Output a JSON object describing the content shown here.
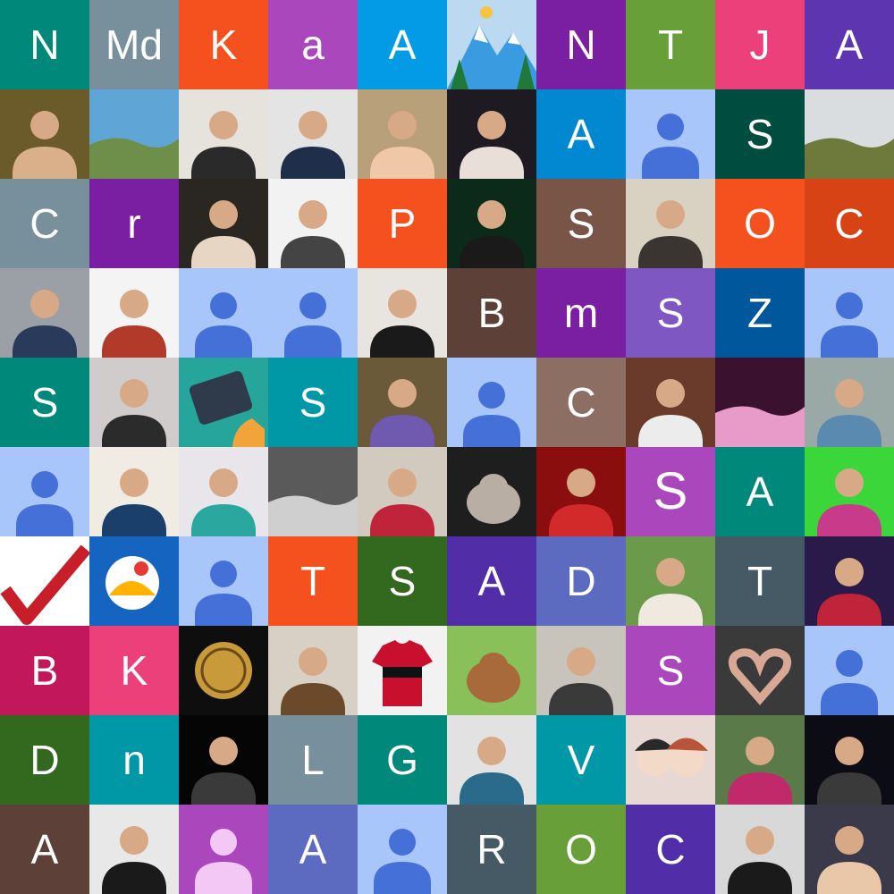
{
  "tiles": [
    {
      "type": "letter",
      "text": "N",
      "bg": "#00897b"
    },
    {
      "type": "letter",
      "text": "Md",
      "bg": "#78909c"
    },
    {
      "type": "letter",
      "text": "K",
      "bg": "#f4511e"
    },
    {
      "type": "letter",
      "text": "a",
      "bg": "#ab47bc"
    },
    {
      "type": "letter",
      "text": "A",
      "bg": "#039be5"
    },
    {
      "type": "photo",
      "icon": "mountain-illustration-icon",
      "c1": "#3b9be0",
      "c2": "#ffffff"
    },
    {
      "type": "letter",
      "text": "N",
      "bg": "#7b1fa2"
    },
    {
      "type": "letter",
      "text": "T",
      "bg": "#689f38"
    },
    {
      "type": "letter",
      "text": "J",
      "bg": "#ec407a"
    },
    {
      "type": "letter",
      "text": "A",
      "bg": "#5e35b1"
    },
    {
      "type": "photo",
      "icon": "person-photo-icon",
      "c1": "#6b5a2a",
      "c2": "#d9b08a"
    },
    {
      "type": "photo",
      "icon": "landscape-photo-icon",
      "c1": "#5fa6d6",
      "c2": "#6e8f4a"
    },
    {
      "type": "photo",
      "icon": "person-photo-icon",
      "c1": "#e6e2dc",
      "c2": "#2a2a2a"
    },
    {
      "type": "photo",
      "icon": "person-photo-icon",
      "c1": "#e4e4e4",
      "c2": "#1f2f4a"
    },
    {
      "type": "photo",
      "icon": "person-photo-icon",
      "c1": "#b8a07a",
      "c2": "#f0c8a8"
    },
    {
      "type": "photo",
      "icon": "person-photo-icon",
      "c1": "#1d1a22",
      "c2": "#e8e0d8"
    },
    {
      "type": "letter",
      "text": "A",
      "bg": "#0288d1"
    },
    {
      "type": "avatar",
      "bg": "#a8c6fa",
      "fg": "#4470d8"
    },
    {
      "type": "letter",
      "text": "S",
      "bg": "#004d40"
    },
    {
      "type": "photo",
      "icon": "landscape-photo-icon",
      "c1": "#d9dde0",
      "c2": "#6d7a3c"
    },
    {
      "type": "letter",
      "text": "C",
      "bg": "#78909c"
    },
    {
      "type": "letter",
      "text": "r",
      "bg": "#7b1fa2"
    },
    {
      "type": "photo",
      "icon": "person-photo-icon",
      "c1": "#2a2622",
      "c2": "#e8d6c4"
    },
    {
      "type": "photo",
      "icon": "person-photo-icon",
      "c1": "#f2f2f2",
      "c2": "#444444"
    },
    {
      "type": "letter",
      "text": "P",
      "bg": "#f4511e"
    },
    {
      "type": "photo",
      "icon": "person-photo-icon",
      "c1": "#0c2a1a",
      "c2": "#1a1a1a"
    },
    {
      "type": "letter",
      "text": "S",
      "bg": "#795548"
    },
    {
      "type": "photo",
      "icon": "person-photo-icon",
      "c1": "#d9d2c2",
      "c2": "#3a3530"
    },
    {
      "type": "letter",
      "text": "O",
      "bg": "#f4511e"
    },
    {
      "type": "letter",
      "text": "C",
      "bg": "#d84315"
    },
    {
      "type": "photo",
      "icon": "person-photo-icon",
      "c1": "#9aa0a6",
      "c2": "#2a3a5a"
    },
    {
      "type": "photo",
      "icon": "person-photo-icon",
      "c1": "#f4f4f4",
      "c2": "#b23a2a"
    },
    {
      "type": "avatar",
      "bg": "#a8c6fa",
      "fg": "#4470d8"
    },
    {
      "type": "avatar",
      "bg": "#a8c6fa",
      "fg": "#4470d8"
    },
    {
      "type": "photo",
      "icon": "person-photo-icon",
      "c1": "#e8e4e0",
      "c2": "#1a1a1a"
    },
    {
      "type": "letter",
      "text": "B",
      "bg": "#5d4037"
    },
    {
      "type": "letter",
      "text": "m",
      "bg": "#7b1fa2"
    },
    {
      "type": "letter",
      "text": "S",
      "bg": "#7e57c2"
    },
    {
      "type": "letter",
      "text": "Z",
      "bg": "#01579b"
    },
    {
      "type": "avatar",
      "bg": "#a8c6fa",
      "fg": "#4470d8"
    },
    {
      "type": "letter",
      "text": "S",
      "bg": "#00897b"
    },
    {
      "type": "photo",
      "icon": "person-photo-icon",
      "c1": "#d0cccc",
      "c2": "#2b2b2b"
    },
    {
      "type": "photo",
      "icon": "tablet-illustration-icon",
      "c1": "#26a69a",
      "c2": "#2f3b4a"
    },
    {
      "type": "letter",
      "text": "S",
      "bg": "#0097a7"
    },
    {
      "type": "photo",
      "icon": "person-photo-icon",
      "c1": "#6a5a3a",
      "c2": "#6f5ab0"
    },
    {
      "type": "avatar",
      "bg": "#a8c6fa",
      "fg": "#4470d8"
    },
    {
      "type": "letter",
      "text": "C",
      "bg": "#8d6e63"
    },
    {
      "type": "photo",
      "icon": "person-photo-icon",
      "c1": "#6a3a2a",
      "c2": "#ececec"
    },
    {
      "type": "photo",
      "icon": "landscape-photo-icon",
      "c1": "#3a1230",
      "c2": "#e89ac8"
    },
    {
      "type": "photo",
      "icon": "person-photo-icon",
      "c1": "#9aa8a6",
      "c2": "#5a8ab0"
    },
    {
      "type": "avatar",
      "bg": "#a8c6fa",
      "fg": "#4470d8"
    },
    {
      "type": "photo",
      "icon": "person-photo-icon",
      "c1": "#f0ece4",
      "c2": "#1a3f6a"
    },
    {
      "type": "photo",
      "icon": "person-photo-icon",
      "c1": "#e8e6ea",
      "c2": "#2aa8a0"
    },
    {
      "type": "photo",
      "icon": "landscape-photo-icon",
      "c1": "#5a5a5a",
      "c2": "#cfcfcf"
    },
    {
      "type": "photo",
      "icon": "person-photo-icon",
      "c1": "#d2c9bf",
      "c2": "#c0243a"
    },
    {
      "type": "photo",
      "icon": "animal-photo-icon",
      "c1": "#1e1e1e",
      "c2": "#b8aea4"
    },
    {
      "type": "photo",
      "icon": "person-photo-icon",
      "c1": "#8a0e0e",
      "c2": "#d22a2a"
    },
    {
      "type": "letter",
      "text": "S",
      "bg": "#ab47bc",
      "big": true
    },
    {
      "type": "letter",
      "text": "A",
      "bg": "#00897b"
    },
    {
      "type": "photo",
      "icon": "person-photo-icon",
      "c1": "#3ad63a",
      "c2": "#c83a8a"
    },
    {
      "type": "photo",
      "icon": "check-mark-icon",
      "c1": "#ffffff",
      "c2": "#c81e2a"
    },
    {
      "type": "photo",
      "icon": "logo-illustration-icon",
      "c1": "#1565c0",
      "c2": "#ffb300"
    },
    {
      "type": "avatar",
      "bg": "#a8c6fa",
      "fg": "#4470d8"
    },
    {
      "type": "letter",
      "text": "T",
      "bg": "#f4511e"
    },
    {
      "type": "letter",
      "text": "S",
      "bg": "#33691e"
    },
    {
      "type": "letter",
      "text": "A",
      "bg": "#512da8"
    },
    {
      "type": "letter",
      "text": "D",
      "bg": "#5c6bc0"
    },
    {
      "type": "photo",
      "icon": "person-photo-icon",
      "c1": "#6a9a4a",
      "c2": "#efe9df"
    },
    {
      "type": "letter",
      "text": "T",
      "bg": "#455a64"
    },
    {
      "type": "photo",
      "icon": "person-photo-icon",
      "c1": "#2a1a4a",
      "c2": "#c0243a"
    },
    {
      "type": "letter",
      "text": "B",
      "bg": "#c2185b"
    },
    {
      "type": "letter",
      "text": "K",
      "bg": "#ec407a"
    },
    {
      "type": "photo",
      "icon": "emblem-photo-icon",
      "c1": "#0e0e0e",
      "c2": "#c89a3a"
    },
    {
      "type": "photo",
      "icon": "person-photo-icon",
      "c1": "#d8d0c4",
      "c2": "#6a4a2a"
    },
    {
      "type": "photo",
      "icon": "jersey-photo-icon",
      "c1": "#f2f2f2",
      "c2": "#c8102e"
    },
    {
      "type": "photo",
      "icon": "animal-photo-icon",
      "c1": "#8ac05a",
      "c2": "#a86a3a"
    },
    {
      "type": "photo",
      "icon": "person-photo-icon",
      "c1": "#c8c4bc",
      "c2": "#3a3a3a"
    },
    {
      "type": "letter",
      "text": "S",
      "bg": "#ab47bc"
    },
    {
      "type": "photo",
      "icon": "hands-heart-photo-icon",
      "c1": "#3a3a3a",
      "c2": "#d8a894"
    },
    {
      "type": "avatar",
      "bg": "#a8c6fa",
      "fg": "#4470d8"
    },
    {
      "type": "letter",
      "text": "D",
      "bg": "#33691e"
    },
    {
      "type": "letter",
      "text": "n",
      "bg": "#0097a7"
    },
    {
      "type": "photo",
      "icon": "person-photo-icon",
      "c1": "#050505",
      "c2": "#3a3a3a"
    },
    {
      "type": "letter",
      "text": "L",
      "bg": "#78909c"
    },
    {
      "type": "letter",
      "text": "G",
      "bg": "#00897b"
    },
    {
      "type": "photo",
      "icon": "person-photo-icon",
      "c1": "#e2e2e2",
      "c2": "#2a6a8a"
    },
    {
      "type": "letter",
      "text": "V",
      "bg": "#0097a7"
    },
    {
      "type": "photo",
      "icon": "anime-illustration-icon",
      "c1": "#e8d8d4",
      "c2": "#b8543a"
    },
    {
      "type": "photo",
      "icon": "person-photo-icon",
      "c1": "#5a7a4a",
      "c2": "#c02a6a"
    },
    {
      "type": "photo",
      "icon": "person-photo-icon",
      "c1": "#0c0c14",
      "c2": "#3a3a3a"
    },
    {
      "type": "letter",
      "text": "A",
      "bg": "#5d4037"
    },
    {
      "type": "photo",
      "icon": "person-photo-icon",
      "c1": "#e8e8e8",
      "c2": "#1a1a1a"
    },
    {
      "type": "avatar",
      "bg": "#ab47bc",
      "fg": "#f3c8f5"
    },
    {
      "type": "letter",
      "text": "A",
      "bg": "#5c6bc0"
    },
    {
      "type": "avatar",
      "bg": "#a8c6fa",
      "fg": "#4470d8"
    },
    {
      "type": "letter",
      "text": "R",
      "bg": "#455a64"
    },
    {
      "type": "letter",
      "text": "O",
      "bg": "#689f38"
    },
    {
      "type": "letter",
      "text": "C",
      "bg": "#512da8"
    },
    {
      "type": "photo",
      "icon": "person-photo-icon",
      "c1": "#d8d8d8",
      "c2": "#1a1a1a"
    },
    {
      "type": "photo",
      "icon": "person-photo-icon",
      "c1": "#3a3a4a",
      "c2": "#e8c8a8"
    }
  ]
}
